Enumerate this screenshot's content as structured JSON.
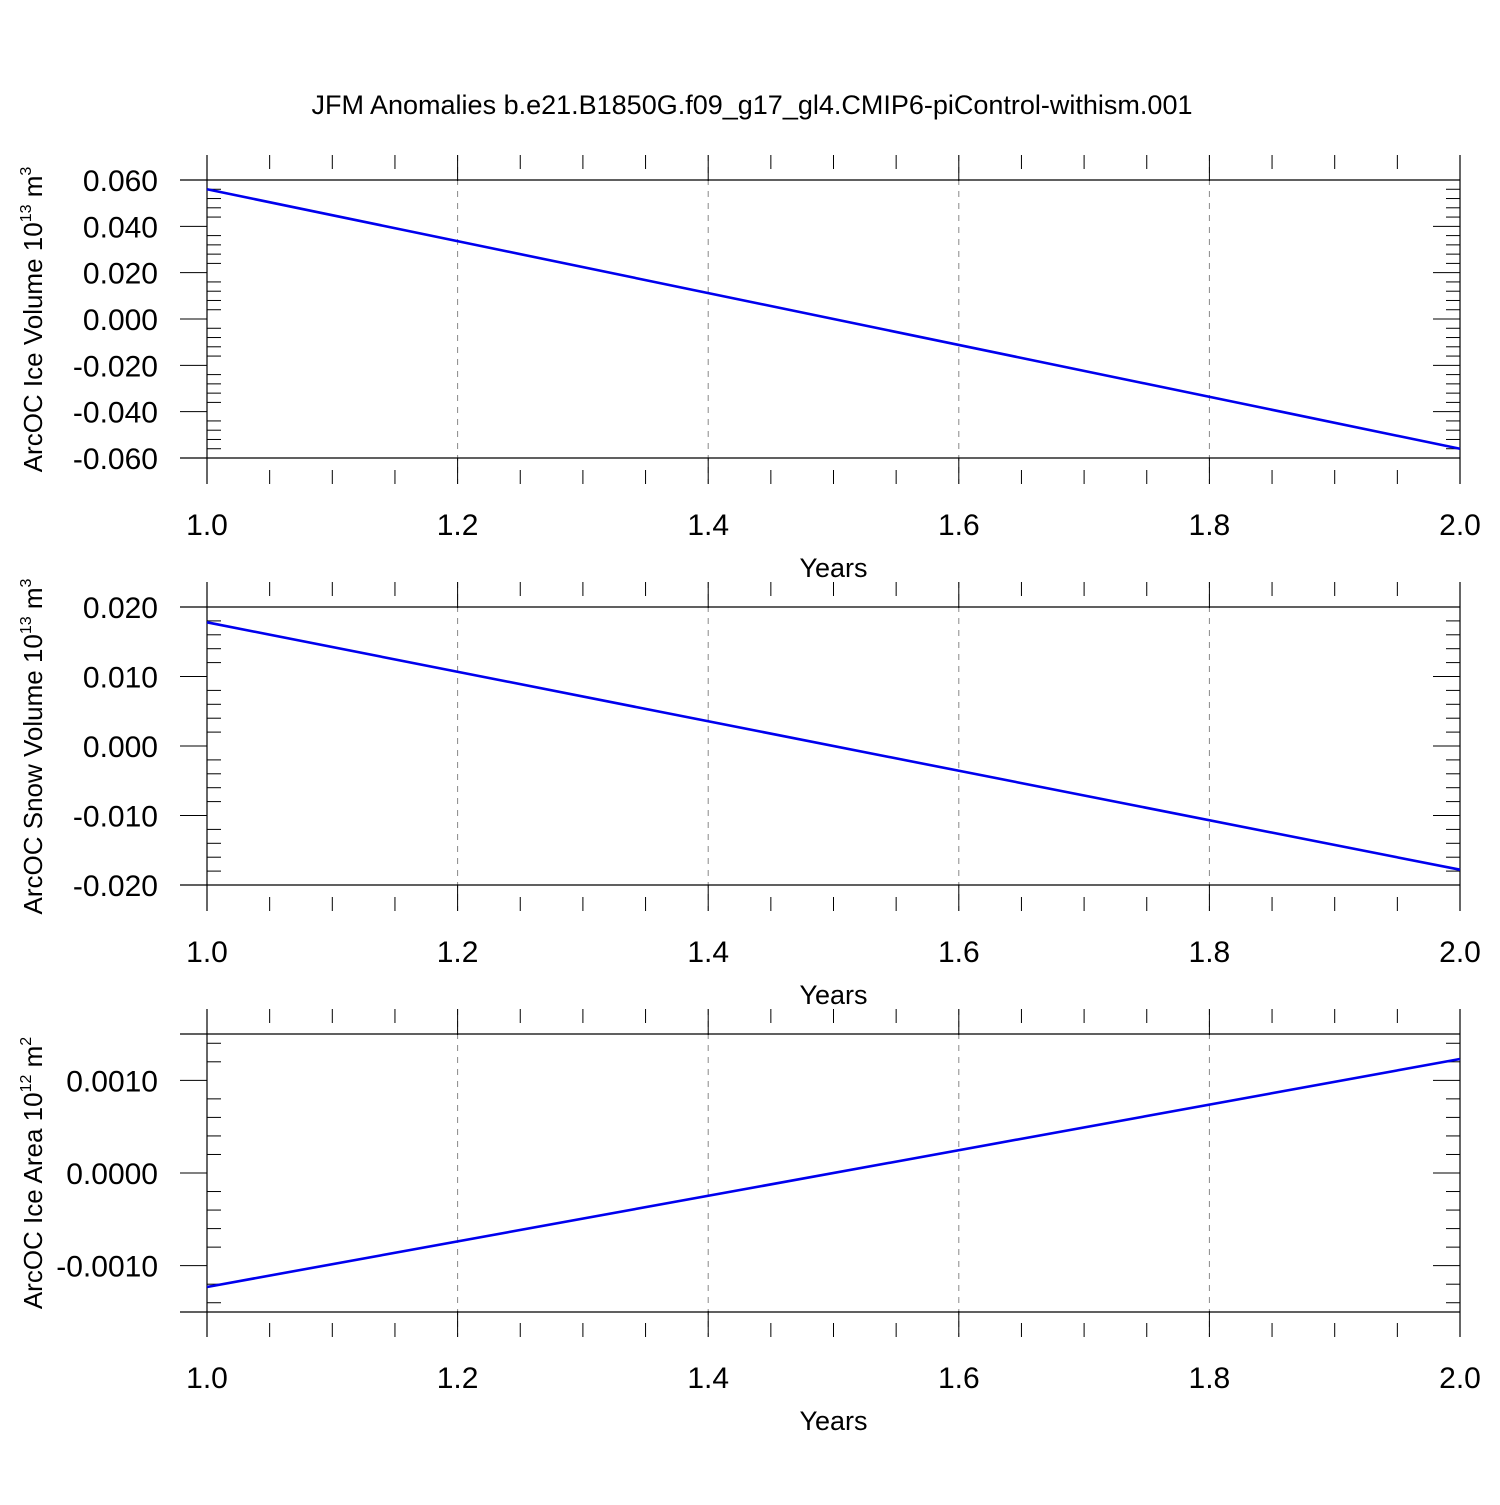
{
  "figure": {
    "title": "JFM Anomalies b.e21.B1850G.f09_g17_gl4.CMIP6-piControl-withism.001"
  },
  "style": {
    "line_color": "#0000ee",
    "axis_color": "#000000",
    "grid_color": "#888888",
    "background": "#ffffff"
  },
  "chart_data": [
    {
      "type": "line",
      "xlabel": "Years",
      "ylabel": {
        "text": "ArcOC Ice Volume 10",
        "sup1": "13",
        "mid": " m",
        "sup2": "3"
      },
      "xlim": [
        1.0,
        2.0
      ],
      "ylim": [
        -0.06,
        0.06
      ],
      "xticks": [
        1.0,
        1.2,
        1.4,
        1.6,
        1.8,
        2.0
      ],
      "xtick_labels": [
        "1.0",
        "1.2",
        "1.4",
        "1.6",
        "1.8",
        "2.0"
      ],
      "yticks": [
        0.06,
        0.04,
        0.02,
        0.0,
        -0.02,
        -0.04,
        -0.06
      ],
      "ytick_labels": [
        "0.060",
        "0.040",
        "0.020",
        "0.000",
        "-0.020",
        "-0.040",
        "-0.060"
      ],
      "grid": "vertical dashed",
      "series": [
        {
          "x": [
            1.0,
            2.0
          ],
          "y": [
            0.056,
            -0.056
          ]
        }
      ]
    },
    {
      "type": "line",
      "xlabel": "Years",
      "ylabel": {
        "text": "ArcOC Snow Volume 10",
        "sup1": "13",
        "mid": " m",
        "sup2": "3"
      },
      "xlim": [
        1.0,
        2.0
      ],
      "ylim": [
        -0.02,
        0.02
      ],
      "xticks": [
        1.0,
        1.2,
        1.4,
        1.6,
        1.8,
        2.0
      ],
      "xtick_labels": [
        "1.0",
        "1.2",
        "1.4",
        "1.6",
        "1.8",
        "2.0"
      ],
      "yticks": [
        0.02,
        0.01,
        0.0,
        -0.01,
        -0.02
      ],
      "ytick_labels": [
        "0.020",
        "0.010",
        "0.000",
        "-0.010",
        "-0.020"
      ],
      "grid": "vertical dashed",
      "series": [
        {
          "x": [
            1.0,
            2.0
          ],
          "y": [
            0.0178,
            -0.0178
          ]
        }
      ]
    },
    {
      "type": "line",
      "xlabel": "Years",
      "ylabel": {
        "text": "ArcOC Ice Area 10",
        "sup1": "12",
        "mid": " m",
        "sup2": "2"
      },
      "xlim": [
        1.0,
        2.0
      ],
      "ylim": [
        -0.0015,
        0.0015
      ],
      "xticks": [
        1.0,
        1.2,
        1.4,
        1.6,
        1.8,
        2.0
      ],
      "xtick_labels": [
        "1.0",
        "1.2",
        "1.4",
        "1.6",
        "1.8",
        "2.0"
      ],
      "yticks": [
        0.001,
        0.0,
        -0.001
      ],
      "ytick_labels": [
        "0.0010",
        "0.0000",
        "-0.0010"
      ],
      "grid": "vertical dashed",
      "series": [
        {
          "x": [
            1.0,
            2.0
          ],
          "y": [
            -0.00123,
            0.00123
          ]
        }
      ]
    }
  ]
}
